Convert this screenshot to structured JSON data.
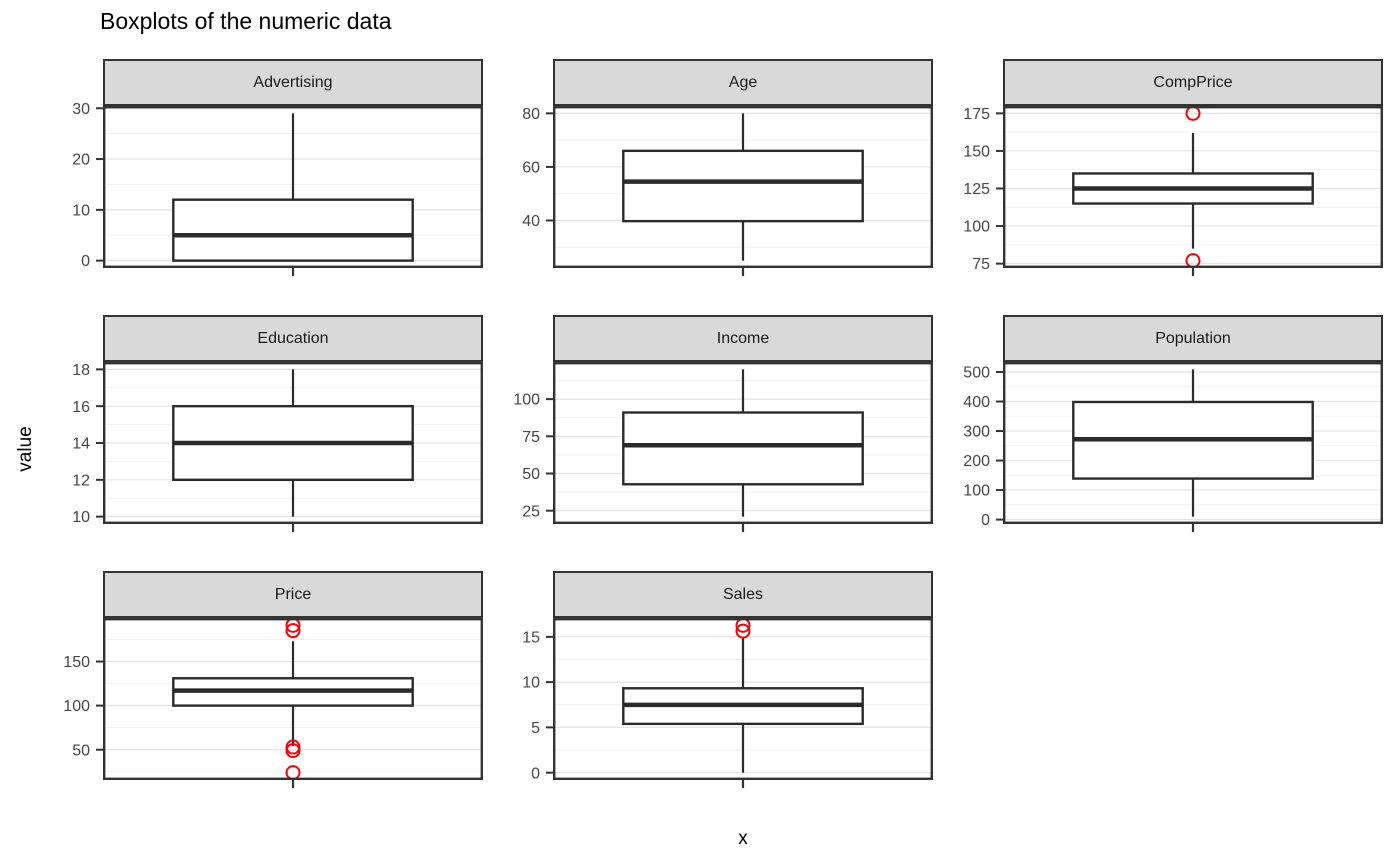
{
  "title": "Boxplots of the numeric data",
  "axis": {
    "x_label": "x",
    "y_label": "value"
  },
  "colors": {
    "background": "#ffffff",
    "panel_background": "#ffffff",
    "panel_border": "#333333",
    "strip_background": "#d9d9d9",
    "strip_border": "#333333",
    "strip_text": "#1a1a1a",
    "grid_major": "#e4e4e4",
    "grid_minor": "#f1f1f1",
    "box_stroke": "#2b2b2b",
    "box_fill": "#ffffff",
    "tick_mark": "#333333",
    "tick_label": "#474747",
    "outlier": "#fb0007",
    "title_text": "#000000"
  },
  "chart_data": {
    "type": "boxplot",
    "title": "Boxplots of the numeric data",
    "xlabel": "x",
    "ylabel": "value",
    "grid": "on",
    "legend": "none",
    "facet_layout": {
      "columns": 3,
      "rows": 3,
      "filled_cells": 8
    },
    "facets": [
      {
        "label": "Advertising",
        "ylim": [
          -1.45,
          30.45
        ],
        "ticks_major": [
          0,
          10,
          20,
          30
        ],
        "ticks_minor": [
          5,
          15,
          25
        ],
        "box": {
          "lower_whisker": 0,
          "q1": 0,
          "median": 5,
          "q3": 12,
          "upper_whisker": 29
        },
        "outliers": []
      },
      {
        "label": "Age",
        "ylim": [
          22.25,
          82.75
        ],
        "ticks_major": [
          40,
          60,
          80
        ],
        "ticks_minor": [
          30,
          50,
          70
        ],
        "box": {
          "lower_whisker": 25,
          "q1": 39.75,
          "median": 54.5,
          "q3": 66,
          "upper_whisker": 80
        },
        "outliers": []
      },
      {
        "label": "CompPrice",
        "ylim": [
          72.1,
          179.9
        ],
        "ticks_major": [
          75,
          100,
          125,
          150,
          175
        ],
        "ticks_minor": [
          87.5,
          112.5,
          137.5,
          162.5
        ],
        "box": {
          "lower_whisker": 85,
          "q1": 115,
          "median": 125,
          "q3": 135,
          "upper_whisker": 162
        },
        "outliers": [
          77,
          175
        ]
      },
      {
        "label": "Education",
        "ylim": [
          9.6,
          18.4
        ],
        "ticks_major": [
          10,
          12,
          14,
          16,
          18
        ],
        "ticks_minor": [
          11,
          13,
          15,
          17
        ],
        "box": {
          "lower_whisker": 10,
          "q1": 12,
          "median": 14,
          "q3": 16,
          "upper_whisker": 18
        },
        "outliers": []
      },
      {
        "label": "Income",
        "ylim": [
          16.05,
          124.95
        ],
        "ticks_major": [
          25,
          50,
          75,
          100
        ],
        "ticks_minor": [
          37.5,
          62.5,
          87.5,
          112.5
        ],
        "box": {
          "lower_whisker": 21,
          "q1": 42.75,
          "median": 69,
          "q3": 91,
          "upper_whisker": 120
        },
        "outliers": []
      },
      {
        "label": "Population",
        "ylim": [
          -14.95,
          533.95
        ],
        "ticks_major": [
          0,
          100,
          200,
          300,
          400,
          500
        ],
        "ticks_minor": [
          50,
          150,
          250,
          350,
          450
        ],
        "box": {
          "lower_whisker": 10,
          "q1": 139,
          "median": 272,
          "q3": 398.5,
          "upper_whisker": 509
        },
        "outliers": []
      },
      {
        "label": "Price",
        "ylim": [
          15.65,
          199.35
        ],
        "ticks_major": [
          50,
          100,
          150
        ],
        "ticks_minor": [
          25,
          75,
          125,
          175
        ],
        "box": {
          "lower_whisker": 54,
          "q1": 100,
          "median": 117,
          "q3": 131,
          "upper_whisker": 173
        },
        "outliers": [
          24,
          49,
          53,
          185,
          191
        ]
      },
      {
        "label": "Sales",
        "ylim": [
          -0.81,
          17.08
        ],
        "ticks_major": [
          0,
          5,
          10,
          15
        ],
        "ticks_minor": [
          2.5,
          7.5,
          12.5
        ],
        "box": {
          "lower_whisker": 0,
          "q1": 5.39,
          "median": 7.49,
          "q3": 9.32,
          "upper_whisker": 14.9
        },
        "outliers": [
          15.63,
          16.27
        ]
      }
    ]
  }
}
